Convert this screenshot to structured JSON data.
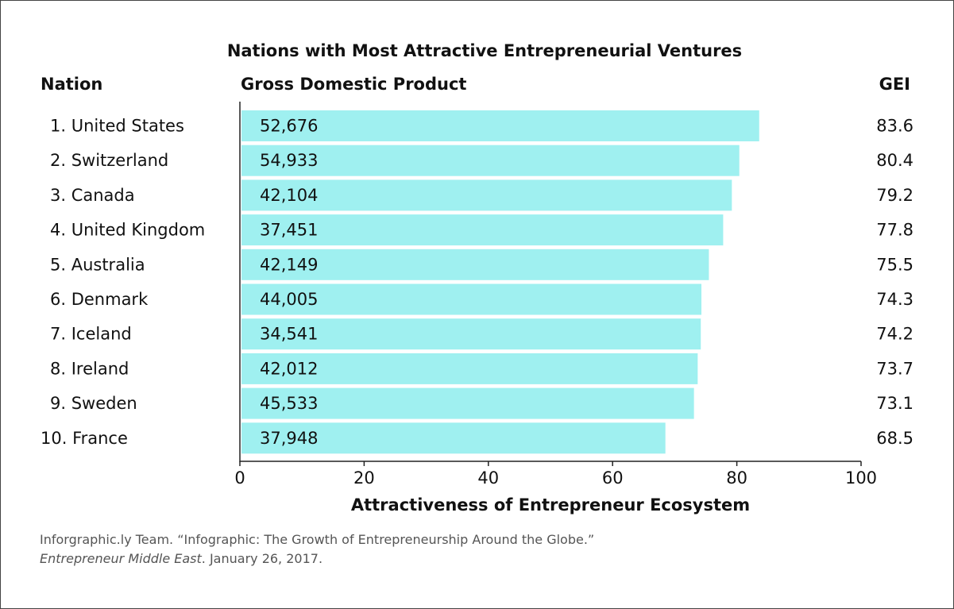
{
  "chart_data": {
    "type": "bar",
    "orientation": "horizontal",
    "title": "Nations with Most Attractive Entrepreneurial Ventures",
    "column_headers": {
      "nation": "Nation",
      "gdp": "Gross Domestic Product",
      "gei": "GEI"
    },
    "categories": [
      "1. United States",
      "2. Switzerland",
      "3. Canada",
      "4. United Kingdom",
      "5. Australia",
      "6. Denmark",
      "7. Iceland",
      "8. Ireland",
      "9. Sweden",
      "10. France"
    ],
    "gdp_labels": [
      "52,676",
      "54,933",
      "42,104",
      "37,451",
      "42,149",
      "44,005",
      "34,541",
      "42,012",
      "45,533",
      "37,948"
    ],
    "values": [
      83.6,
      80.4,
      79.2,
      77.8,
      75.5,
      74.3,
      74.2,
      73.7,
      73.1,
      68.5
    ],
    "gei_labels": [
      "83.6",
      "80.4",
      "79.2",
      "77.8",
      "75.5",
      "74.3",
      "74.2",
      "73.7",
      "73.1",
      "68.5"
    ],
    "xlabel": "Attractiveness of Entrepreneur Ecosystem",
    "xlim": [
      0,
      100
    ],
    "xticks": [
      "0",
      "20",
      "40",
      "60",
      "80",
      "100"
    ],
    "grid": false,
    "bar_color": "#9ff0f0"
  },
  "source": {
    "line1": "Inforgraphic.ly Team. “Infographic: The Growth of Entrepreneurship Around the Globe.”",
    "publication": "Entrepreneur Middle East",
    "date_suffix": ". January 26, 2017."
  }
}
